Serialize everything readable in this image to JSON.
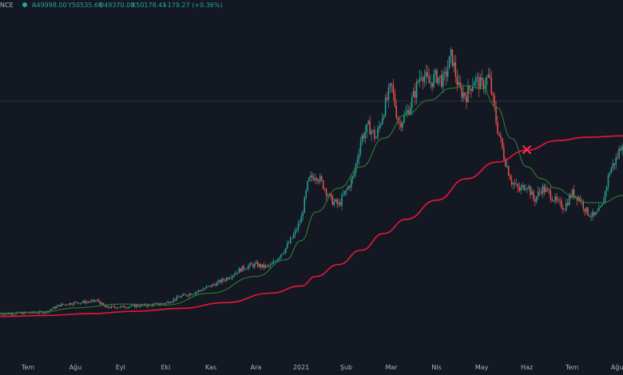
{
  "symbol": {
    "exchange_fragment": "NCE",
    "live_dot_color": "#26a69a"
  },
  "ohlc": {
    "open": "A49998.00",
    "high": "Y50535.69",
    "low": "D49370.00",
    "close": "K50178.41",
    "change": "+179.27 (+0.36%)"
  },
  "colors": {
    "background": "#141823",
    "candle_up": "#26a69a",
    "candle_down": "#ef5350",
    "ma_short": "#2e7d32",
    "ma_long": "#e8173a",
    "cross_marker": "#ff2b4f",
    "grid": "#2a2e39",
    "text": "#b2b5be"
  },
  "chart_data": {
    "type": "candlestick",
    "x_axis_labels": [
      {
        "label": "Tem",
        "month": 0.62
      },
      {
        "label": "Ağu",
        "month": 1.67
      },
      {
        "label": "Eyl",
        "month": 2.67
      },
      {
        "label": "Eki",
        "month": 3.67
      },
      {
        "label": "Kas",
        "month": 4.67
      },
      {
        "label": "Ara",
        "month": 5.67
      },
      {
        "label": "2021",
        "month": 6.67
      },
      {
        "label": "Şub",
        "month": 7.67
      },
      {
        "label": "Mar",
        "month": 8.67
      },
      {
        "label": "Nis",
        "month": 9.67
      },
      {
        "label": "May",
        "month": 10.67
      },
      {
        "label": "Haz",
        "month": 11.67
      },
      {
        "label": "Tem",
        "month": 12.67
      },
      {
        "label": "Ağu",
        "month": 13.67
      }
    ],
    "x_range_months": [
      0,
      13.8
    ],
    "y_range": [
      0,
      72000
    ],
    "y_reference_line": 53800,
    "price_path": [
      [
        0.0,
        9100
      ],
      [
        0.5,
        9300
      ],
      [
        1.0,
        9500
      ],
      [
        1.33,
        11000
      ],
      [
        1.67,
        11500
      ],
      [
        2.0,
        11700
      ],
      [
        2.17,
        11900
      ],
      [
        2.33,
        10500
      ],
      [
        2.67,
        10600
      ],
      [
        3.0,
        10800
      ],
      [
        3.33,
        11000
      ],
      [
        3.67,
        11400
      ],
      [
        4.0,
        12800
      ],
      [
        4.33,
        13700
      ],
      [
        4.67,
        15000
      ],
      [
        5.0,
        16500
      ],
      [
        5.33,
        18500
      ],
      [
        5.5,
        19200
      ],
      [
        5.67,
        19500
      ],
      [
        5.83,
        19000
      ],
      [
        6.0,
        19200
      ],
      [
        6.33,
        23000
      ],
      [
        6.5,
        25500
      ],
      [
        6.67,
        29000
      ],
      [
        6.83,
        37000
      ],
      [
        7.0,
        38500
      ],
      [
        7.17,
        36000
      ],
      [
        7.33,
        33000
      ],
      [
        7.5,
        32000
      ],
      [
        7.67,
        35000
      ],
      [
        7.83,
        38000
      ],
      [
        8.0,
        46000
      ],
      [
        8.17,
        48500
      ],
      [
        8.33,
        46000
      ],
      [
        8.5,
        52000
      ],
      [
        8.67,
        57000
      ],
      [
        8.83,
        49000
      ],
      [
        9.0,
        51000
      ],
      [
        9.17,
        55000
      ],
      [
        9.33,
        60000
      ],
      [
        9.5,
        57500
      ],
      [
        9.67,
        59000
      ],
      [
        9.83,
        58000
      ],
      [
        10.0,
        63500
      ],
      [
        10.17,
        56000
      ],
      [
        10.33,
        55000
      ],
      [
        10.5,
        58500
      ],
      [
        10.67,
        57000
      ],
      [
        10.83,
        59000
      ],
      [
        11.0,
        49000
      ],
      [
        11.17,
        42000
      ],
      [
        11.33,
        37000
      ],
      [
        11.5,
        35000
      ],
      [
        11.67,
        36500
      ],
      [
        11.83,
        33000
      ],
      [
        12.0,
        35500
      ],
      [
        12.17,
        34500
      ],
      [
        12.33,
        32500
      ],
      [
        12.5,
        31500
      ],
      [
        12.67,
        34500
      ],
      [
        12.83,
        33500
      ],
      [
        13.0,
        30500
      ],
      [
        13.17,
        29500
      ],
      [
        13.33,
        31500
      ],
      [
        13.5,
        39000
      ],
      [
        13.67,
        42000
      ],
      [
        13.8,
        46000
      ]
    ],
    "series": [
      {
        "name": "",
        "kind": "ma_short",
        "points": [
          [
            0.0,
            9300
          ],
          [
            1.0,
            9600
          ],
          [
            1.67,
            10400
          ],
          [
            2.67,
            11200
          ],
          [
            3.67,
            11000
          ],
          [
            4.67,
            13500
          ],
          [
            5.67,
            17000
          ],
          [
            6.33,
            20500
          ],
          [
            6.67,
            24500
          ],
          [
            7.0,
            30500
          ],
          [
            7.5,
            35500
          ],
          [
            8.0,
            40000
          ],
          [
            8.5,
            46000
          ],
          [
            9.0,
            51000
          ],
          [
            9.5,
            54000
          ],
          [
            10.0,
            56500
          ],
          [
            10.33,
            57000
          ],
          [
            10.67,
            56500
          ],
          [
            11.0,
            52500
          ],
          [
            11.33,
            46000
          ],
          [
            11.67,
            40000
          ],
          [
            12.0,
            37500
          ],
          [
            12.33,
            35500
          ],
          [
            12.67,
            34000
          ],
          [
            13.0,
            32500
          ],
          [
            13.33,
            32500
          ],
          [
            13.8,
            34000
          ]
        ]
      },
      {
        "name": "",
        "kind": "ma_long",
        "points": [
          [
            0.0,
            8600
          ],
          [
            1.0,
            8800
          ],
          [
            2.0,
            9200
          ],
          [
            3.0,
            9700
          ],
          [
            4.0,
            10300
          ],
          [
            5.0,
            11500
          ],
          [
            6.0,
            13500
          ],
          [
            6.67,
            15000
          ],
          [
            7.0,
            17000
          ],
          [
            7.5,
            19500
          ],
          [
            8.0,
            22500
          ],
          [
            8.5,
            26000
          ],
          [
            9.0,
            29000
          ],
          [
            9.67,
            33000
          ],
          [
            10.33,
            37500
          ],
          [
            11.0,
            41000
          ],
          [
            11.67,
            43500
          ],
          [
            12.33,
            45500
          ],
          [
            13.0,
            46200
          ],
          [
            13.8,
            46500
          ]
        ]
      }
    ],
    "crossover_point": {
      "month": 11.67,
      "value": 43600
    }
  }
}
